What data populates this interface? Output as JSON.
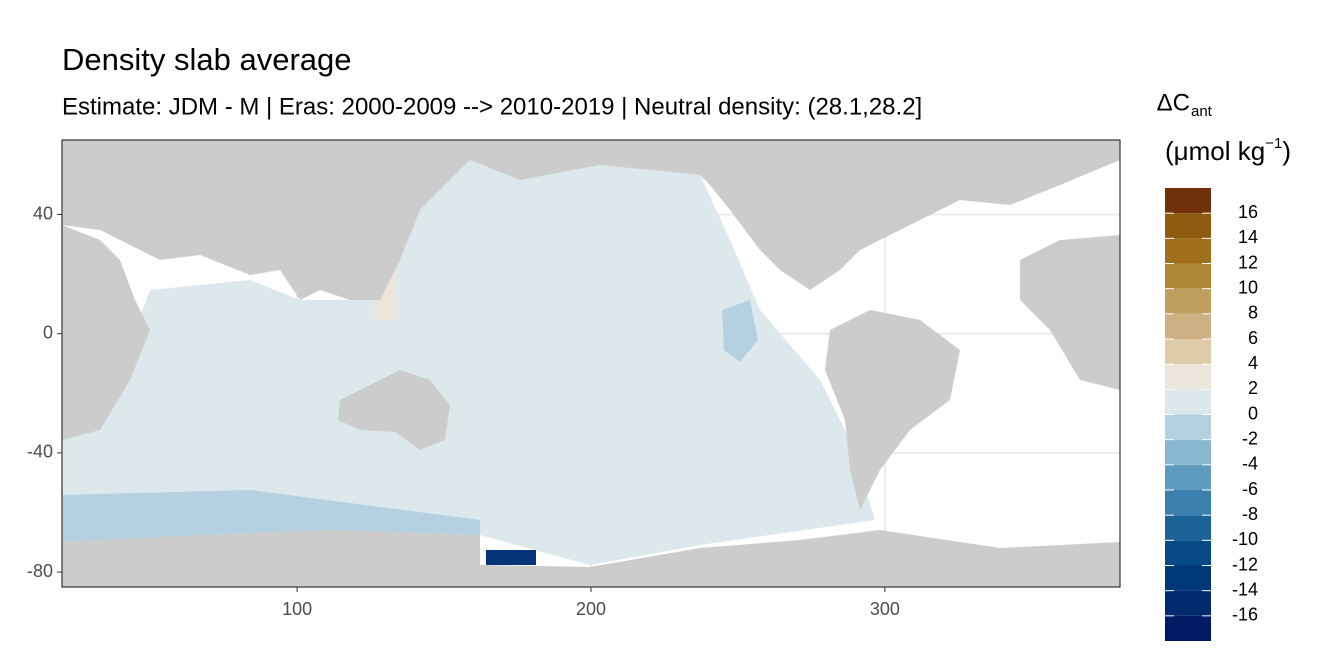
{
  "chart_data": {
    "type": "map",
    "title": "Density slab average",
    "subtitle": "Estimate: JDM - M | Eras: 2000-2009 --> 2010-2019 | Neutral density: (28.1,28.2]",
    "xlim": [
      20,
      380
    ],
    "xticks": [
      100,
      200,
      300
    ],
    "ylim": [
      -85,
      65
    ],
    "yticks": [
      40,
      0,
      -40,
      -80
    ],
    "grid": true,
    "legend": {
      "title": [
        "ΔC",
        "ant"
      ],
      "unit": [
        "(μmol kg",
        "−1",
        ")"
      ],
      "lim": [
        -18,
        18
      ],
      "breaks": [
        -16,
        -14,
        -12,
        -10,
        -8,
        -6,
        -4,
        -2,
        0,
        2,
        4,
        6,
        8,
        10,
        12,
        14,
        16
      ],
      "colors": [
        "#001a64",
        "#002a6e",
        "#00387a",
        "#084a86",
        "#1c6398",
        "#3a7fad",
        "#5e9bbf",
        "#8ab7d0",
        "#b5d1e1",
        "#dde8ec",
        "#ebe5db",
        "#dfcba8",
        "#cdb184",
        "#bf9e5e",
        "#b08838",
        "#a06f1e",
        "#8f5b10",
        "#70310a"
      ]
    }
  }
}
